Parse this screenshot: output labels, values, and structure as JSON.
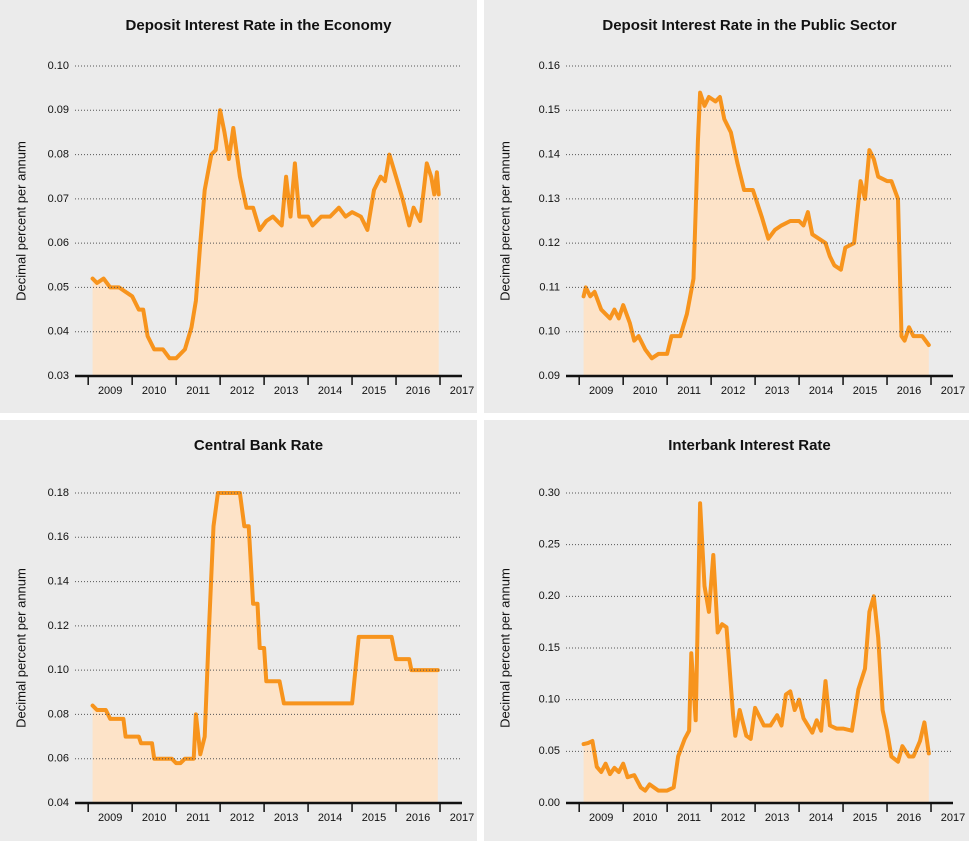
{
  "chart_data": [
    {
      "type": "area",
      "title": "Deposit Interest Rate in the Economy",
      "ylabel": "Decimal percent per annum",
      "color": "#f7941d",
      "fill": "#fde3c8",
      "grid": true,
      "xlim": [
        2008.7,
        2017.5
      ],
      "xticks": [
        2009,
        2010,
        2011,
        2012,
        2013,
        2014,
        2015,
        2016,
        2017
      ],
      "ylim": [
        0.03,
        0.1
      ],
      "yticks": [
        0.03,
        0.04,
        0.05,
        0.06,
        0.07,
        0.08,
        0.09,
        {
          "value": 0.1,
          "label": "0.10"
        }
      ],
      "x": [
        2009.1,
        2009.2,
        2009.35,
        2009.5,
        2009.7,
        2009.85,
        2010.0,
        2010.15,
        2010.25,
        2010.35,
        2010.5,
        2010.7,
        2010.85,
        2011.0,
        2011.2,
        2011.35,
        2011.45,
        2011.55,
        2011.65,
        2011.8,
        2011.9,
        2012.0,
        2012.1,
        2012.2,
        2012.3,
        2012.45,
        2012.6,
        2012.75,
        2012.9,
        2013.05,
        2013.2,
        2013.4,
        2013.5,
        2013.6,
        2013.7,
        2013.8,
        2014.0,
        2014.1,
        2014.3,
        2014.5,
        2014.7,
        2014.85,
        2015.0,
        2015.2,
        2015.35,
        2015.5,
        2015.65,
        2015.75,
        2015.85,
        2016.0,
        2016.15,
        2016.3,
        2016.4,
        2016.55,
        2016.7,
        2016.8,
        2016.87,
        2016.93,
        2016.97
      ],
      "values": [
        0.052,
        0.051,
        0.052,
        0.05,
        0.05,
        0.049,
        0.048,
        0.045,
        0.045,
        0.039,
        0.036,
        0.036,
        0.034,
        0.034,
        0.036,
        0.041,
        0.047,
        0.06,
        0.072,
        0.08,
        0.081,
        0.09,
        0.085,
        0.079,
        0.086,
        0.075,
        0.068,
        0.068,
        0.063,
        0.065,
        0.066,
        0.064,
        0.075,
        0.066,
        0.078,
        0.066,
        0.066,
        0.064,
        0.066,
        0.066,
        0.068,
        0.066,
        0.067,
        0.066,
        0.063,
        0.072,
        0.075,
        0.074,
        0.08,
        0.075,
        0.07,
        0.064,
        0.068,
        0.065,
        0.078,
        0.075,
        0.071,
        0.076,
        0.071
      ]
    },
    {
      "type": "area",
      "title": "Deposit Interest Rate in the Public Sector",
      "ylabel": "Decimal percent per annum",
      "color": "#f7941d",
      "fill": "#fde3c8",
      "grid": true,
      "xlim": [
        2008.7,
        2017.5
      ],
      "xticks": [
        2009,
        2010,
        2011,
        2012,
        2013,
        2014,
        2015,
        2016,
        2017
      ],
      "ylim": [
        0.09,
        0.16
      ],
      "yticks": [
        0.09,
        {
          "value": 0.1,
          "label": "0.10"
        },
        0.11,
        0.12,
        0.13,
        0.14,
        0.15,
        0.16
      ],
      "x": [
        2009.1,
        2009.15,
        2009.25,
        2009.35,
        2009.5,
        2009.7,
        2009.8,
        2009.9,
        2010.0,
        2010.15,
        2010.25,
        2010.35,
        2010.5,
        2010.65,
        2010.8,
        2011.0,
        2011.1,
        2011.3,
        2011.45,
        2011.6,
        2011.7,
        2011.75,
        2011.85,
        2011.95,
        2012.1,
        2012.2,
        2012.3,
        2012.45,
        2012.6,
        2012.75,
        2012.95,
        2013.15,
        2013.3,
        2013.45,
        2013.6,
        2013.8,
        2014.0,
        2014.1,
        2014.2,
        2014.3,
        2014.45,
        2014.6,
        2014.7,
        2014.8,
        2014.95,
        2015.05,
        2015.25,
        2015.4,
        2015.5,
        2015.6,
        2015.7,
        2015.8,
        2016.0,
        2016.1,
        2016.25,
        2016.33,
        2016.4,
        2016.5,
        2016.6,
        2016.8,
        2016.95
      ],
      "values": [
        0.108,
        0.11,
        0.108,
        0.109,
        0.105,
        0.103,
        0.105,
        0.103,
        0.106,
        0.102,
        0.098,
        0.099,
        0.096,
        0.094,
        0.095,
        0.095,
        0.099,
        0.099,
        0.104,
        0.112,
        0.143,
        0.154,
        0.151,
        0.153,
        0.152,
        0.153,
        0.148,
        0.145,
        0.138,
        0.132,
        0.132,
        0.126,
        0.121,
        0.123,
        0.124,
        0.125,
        0.125,
        0.124,
        0.127,
        0.122,
        0.121,
        0.12,
        0.117,
        0.115,
        0.114,
        0.119,
        0.12,
        0.134,
        0.13,
        0.141,
        0.139,
        0.135,
        0.134,
        0.134,
        0.13,
        0.099,
        0.098,
        0.101,
        0.099,
        0.099,
        0.097
      ]
    },
    {
      "type": "area",
      "title": "Central Bank Rate",
      "ylabel": "Decimal percent per annum",
      "color": "#f7941d",
      "fill": "#fde3c8",
      "grid": true,
      "xlim": [
        2008.7,
        2017.5
      ],
      "xticks": [
        2009,
        2010,
        2011,
        2012,
        2013,
        2014,
        2015,
        2016,
        2017
      ],
      "ylim": [
        0.04,
        0.18
      ],
      "yticks": [
        0.04,
        0.06,
        0.08,
        {
          "value": 0.1,
          "label": "0.10"
        },
        0.12,
        0.14,
        0.16,
        0.18
      ],
      "x": [
        2009.1,
        2009.2,
        2009.4,
        2009.5,
        2009.8,
        2009.85,
        2010.15,
        2010.2,
        2010.45,
        2010.5,
        2010.9,
        2011.0,
        2011.1,
        2011.2,
        2011.4,
        2011.45,
        2011.55,
        2011.65,
        2011.75,
        2011.85,
        2011.95,
        2012.45,
        2012.55,
        2012.65,
        2012.75,
        2012.85,
        2012.9,
        2013.0,
        2013.05,
        2013.35,
        2013.45,
        2015.0,
        2015.15,
        2015.9,
        2016.0,
        2016.3,
        2016.35,
        2016.95
      ],
      "values": [
        0.084,
        0.082,
        0.082,
        0.078,
        0.078,
        0.07,
        0.07,
        0.067,
        0.067,
        0.06,
        0.06,
        0.058,
        0.058,
        0.06,
        0.06,
        0.08,
        0.062,
        0.07,
        0.12,
        0.165,
        0.18,
        0.18,
        0.165,
        0.165,
        0.13,
        0.13,
        0.11,
        0.11,
        0.095,
        0.095,
        0.085,
        0.085,
        0.115,
        0.115,
        0.105,
        0.105,
        0.1,
        0.1
      ]
    },
    {
      "type": "area",
      "title": "Interbank Interest Rate",
      "ylabel": "Decimal percent per annum",
      "color": "#f7941d",
      "fill": "#fde3c8",
      "grid": true,
      "xlim": [
        2008.7,
        2017.5
      ],
      "xticks": [
        2009,
        2010,
        2011,
        2012,
        2013,
        2014,
        2015,
        2016,
        2017
      ],
      "ylim": [
        0,
        0.3
      ],
      "yticks": [
        {
          "value": 0,
          "label": "0.00"
        },
        0.05,
        {
          "value": 0.1,
          "label": "0.10"
        },
        0.15,
        {
          "value": 0.2,
          "label": "0.20"
        },
        0.25,
        {
          "value": 0.3,
          "label": "0.30"
        }
      ],
      "x": [
        2009.1,
        2009.2,
        2009.3,
        2009.4,
        2009.5,
        2009.6,
        2009.7,
        2009.8,
        2009.9,
        2010.0,
        2010.1,
        2010.25,
        2010.4,
        2010.5,
        2010.6,
        2010.8,
        2011.0,
        2011.15,
        2011.25,
        2011.4,
        2011.5,
        2011.55,
        2011.65,
        2011.75,
        2011.85,
        2011.95,
        2012.05,
        2012.15,
        2012.25,
        2012.35,
        2012.5,
        2012.55,
        2012.65,
        2012.8,
        2012.9,
        2013.0,
        2013.2,
        2013.35,
        2013.5,
        2013.6,
        2013.7,
        2013.8,
        2013.9,
        2014.0,
        2014.1,
        2014.3,
        2014.4,
        2014.5,
        2014.6,
        2014.7,
        2014.85,
        2015.0,
        2015.2,
        2015.35,
        2015.5,
        2015.6,
        2015.7,
        2015.8,
        2015.9,
        2016.0,
        2016.1,
        2016.25,
        2016.35,
        2016.5,
        2016.6,
        2016.75,
        2016.85,
        2016.95
      ],
      "values": [
        0.057,
        0.058,
        0.06,
        0.035,
        0.03,
        0.038,
        0.028,
        0.034,
        0.03,
        0.038,
        0.025,
        0.027,
        0.015,
        0.012,
        0.018,
        0.012,
        0.012,
        0.015,
        0.045,
        0.062,
        0.07,
        0.145,
        0.08,
        0.29,
        0.21,
        0.185,
        0.24,
        0.165,
        0.173,
        0.17,
        0.085,
        0.065,
        0.09,
        0.065,
        0.062,
        0.092,
        0.075,
        0.075,
        0.085,
        0.075,
        0.105,
        0.108,
        0.09,
        0.1,
        0.082,
        0.068,
        0.08,
        0.07,
        0.118,
        0.075,
        0.072,
        0.072,
        0.07,
        0.11,
        0.13,
        0.185,
        0.2,
        0.16,
        0.09,
        0.07,
        0.045,
        0.04,
        0.055,
        0.045,
        0.045,
        0.06,
        0.078,
        0.048
      ]
    }
  ]
}
